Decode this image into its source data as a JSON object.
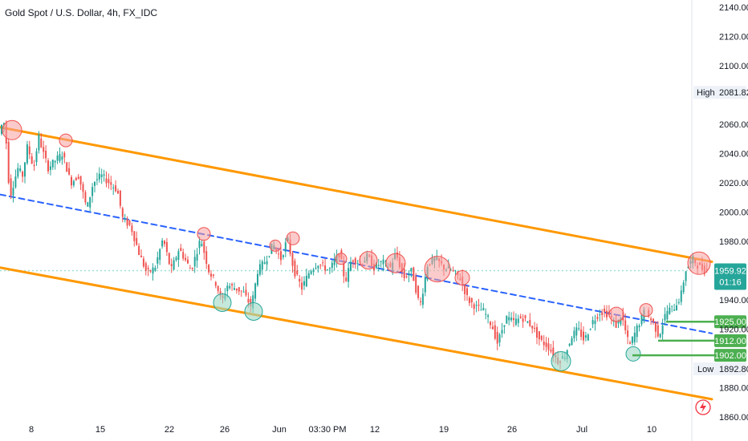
{
  "header": {
    "symbol_title": "Gold Spot / U.S. Dollar, 4h, FX_IDC"
  },
  "price_axis": {
    "ticks": [
      "2140.00",
      "2120.00",
      "2100.00",
      "2060.00",
      "2040.00",
      "2020.00",
      "2000.00",
      "1980.00",
      "1940.00",
      "1920.00",
      "1880.00",
      "1860.00"
    ]
  },
  "time_axis": {
    "ticks": [
      "8",
      "15",
      "22",
      "26",
      "Jun",
      "03:30 PM",
      "12",
      "19",
      "26",
      "Jul",
      "10"
    ]
  },
  "labels": {
    "high_label": "High",
    "high_value": "2081.82",
    "low_label": "Low",
    "low_value": "1892.80",
    "last_price": "1959.92",
    "countdown": "01:16",
    "level_1": "1925.00",
    "level_2": "1912.00",
    "level_3": "1902.00"
  },
  "colors": {
    "candle_up": "#26a69a",
    "candle_down": "#ef5350",
    "channel": "#ff9800",
    "midline": "#2962ff",
    "support": "#4caf50",
    "resistance_marker": "#f7a1a1",
    "support_marker": "#9fd9c5",
    "price_line": "#9ee0d2",
    "last_price_bg": "#26a69a"
  },
  "icons": {
    "alert": "lightning-bolt-icon"
  },
  "chart_data": {
    "type": "candlestick",
    "title": "Gold Spot / U.S. Dollar, 4h, FX_IDC",
    "ylim": [
      1850,
      2145
    ],
    "last_price": 1959.92,
    "high": 2081.82,
    "low": 1892.8,
    "path": [
      [
        0,
        2025
      ],
      [
        2,
        2082
      ],
      [
        4,
        2058
      ],
      [
        8,
        2062
      ],
      [
        14,
        2010
      ],
      [
        24,
        2030
      ],
      [
        30,
        2025
      ],
      [
        36,
        2045
      ],
      [
        44,
        2030
      ],
      [
        50,
        2052
      ],
      [
        56,
        2040
      ],
      [
        62,
        2030
      ],
      [
        70,
        2035
      ],
      [
        80,
        2040
      ],
      [
        90,
        2020
      ],
      [
        100,
        2025
      ],
      [
        110,
        2002
      ],
      [
        118,
        2020
      ],
      [
        128,
        2025
      ],
      [
        138,
        2020
      ],
      [
        148,
        2015
      ],
      [
        155,
        1995
      ],
      [
        165,
        1990
      ],
      [
        175,
        1972
      ],
      [
        185,
        1958
      ],
      [
        195,
        1962
      ],
      [
        205,
        1982
      ],
      [
        215,
        1960
      ],
      [
        225,
        1975
      ],
      [
        240,
        1960
      ],
      [
        252,
        1982
      ],
      [
        262,
        1960
      ],
      [
        272,
        1950
      ],
      [
        278,
        1938
      ],
      [
        285,
        1950
      ],
      [
        295,
        1948
      ],
      [
        305,
        1945
      ],
      [
        315,
        1935
      ],
      [
        323,
        1960
      ],
      [
        333,
        1967
      ],
      [
        342,
        1978
      ],
      [
        352,
        1968
      ],
      [
        360,
        1982
      ],
      [
        368,
        1960
      ],
      [
        378,
        1948
      ],
      [
        388,
        1960
      ],
      [
        398,
        1965
      ],
      [
        412,
        1960
      ],
      [
        425,
        1972
      ],
      [
        432,
        1952
      ],
      [
        440,
        1968
      ],
      [
        452,
        1965
      ],
      [
        460,
        1970
      ],
      [
        468,
        1962
      ],
      [
        478,
        1966
      ],
      [
        488,
        1962
      ],
      [
        495,
        1972
      ],
      [
        505,
        1955
      ],
      [
        515,
        1960
      ],
      [
        525,
        1935
      ],
      [
        535,
        1965
      ],
      [
        545,
        1968
      ],
      [
        555,
        1962
      ],
      [
        565,
        1960
      ],
      [
        575,
        1955
      ],
      [
        585,
        1940
      ],
      [
        595,
        1935
      ],
      [
        605,
        1932
      ],
      [
        615,
        1922
      ],
      [
        622,
        1910
      ],
      [
        632,
        1928
      ],
      [
        642,
        1925
      ],
      [
        652,
        1928
      ],
      [
        665,
        1922
      ],
      [
        675,
        1912
      ],
      [
        685,
        1908
      ],
      [
        697,
        1898
      ],
      [
        706,
        1902
      ],
      [
        714,
        1915
      ],
      [
        722,
        1920
      ],
      [
        730,
        1912
      ],
      [
        740,
        1925
      ],
      [
        750,
        1932
      ],
      [
        760,
        1930
      ],
      [
        770,
        1922
      ],
      [
        776,
        1930
      ],
      [
        786,
        1908
      ],
      [
        795,
        1920
      ],
      [
        805,
        1932
      ],
      [
        815,
        1925
      ],
      [
        823,
        1915
      ],
      [
        832,
        1932
      ],
      [
        842,
        1935
      ],
      [
        850,
        1942
      ],
      [
        856,
        1960
      ],
      [
        865,
        1968
      ],
      [
        872,
        1963
      ],
      [
        880,
        1960
      ]
    ],
    "channel_upper": {
      "from": [
        0,
        2058
      ],
      "to": [
        887,
        1966
      ]
    },
    "channel_lower": {
      "from": [
        0,
        1962
      ],
      "to": [
        887,
        1872
      ]
    },
    "midline": {
      "from": [
        0,
        2012
      ],
      "to": [
        887,
        1917
      ]
    },
    "support_levels": [
      1925.0,
      1912.0,
      1902.0
    ],
    "resistance_touches": [
      [
        15,
        2056
      ],
      [
        82,
        2049
      ],
      [
        254,
        1985
      ],
      [
        343,
        1977
      ],
      [
        365,
        1982
      ],
      [
        425,
        1968
      ],
      [
        459,
        1967
      ],
      [
        493,
        1965
      ],
      [
        545,
        1961
      ],
      [
        576,
        1955
      ],
      [
        768,
        1930
      ],
      [
        805,
        1933
      ],
      [
        871,
        1965
      ]
    ],
    "support_touches": [
      [
        277,
        1938
      ],
      [
        316,
        1932
      ],
      [
        699,
        1898
      ],
      [
        789,
        1903
      ]
    ]
  }
}
